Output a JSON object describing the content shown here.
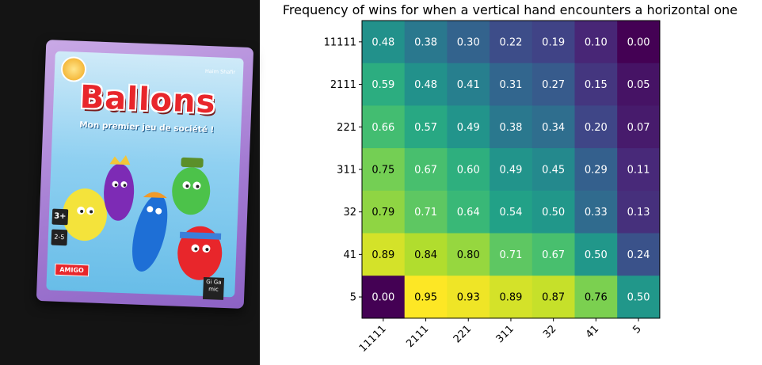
{
  "photo": {
    "title": "Ballons",
    "subtitle": "Mon premier jeu de société !",
    "author": "Haim Shafir",
    "age": "3+",
    "players": "2-5",
    "brand": "AMIGO",
    "publisher": "Gi Ga mic",
    "icons": [
      "balloon-yellow-icon",
      "balloon-purple-crown-icon",
      "balloon-blue-cap-icon",
      "balloon-green-hat-icon",
      "balloon-red-headband-icon"
    ]
  },
  "chart_data": {
    "type": "heatmap",
    "title": "Frequency of wins for when a vertical hand encounters a horizontal one",
    "rows": [
      "11111",
      "2111",
      "221",
      "311",
      "32",
      "41",
      "5"
    ],
    "columns": [
      "11111",
      "2111",
      "221",
      "311",
      "32",
      "41",
      "5"
    ],
    "values": [
      [
        0.48,
        0.38,
        0.3,
        0.22,
        0.19,
        0.1,
        0.0
      ],
      [
        0.59,
        0.48,
        0.41,
        0.31,
        0.27,
        0.15,
        0.05
      ],
      [
        0.66,
        0.57,
        0.49,
        0.38,
        0.34,
        0.2,
        0.07
      ],
      [
        0.75,
        0.67,
        0.6,
        0.49,
        0.45,
        0.29,
        0.11
      ],
      [
        0.79,
        0.71,
        0.64,
        0.54,
        0.5,
        0.33,
        0.13
      ],
      [
        0.89,
        0.84,
        0.8,
        0.71,
        0.67,
        0.5,
        0.24
      ],
      [
        0.0,
        0.95,
        0.93,
        0.89,
        0.87,
        0.76,
        0.5
      ]
    ],
    "colormap": "viridis",
    "vmin": 0.0,
    "vmax": 0.95,
    "grid": false,
    "legend": "none"
  }
}
